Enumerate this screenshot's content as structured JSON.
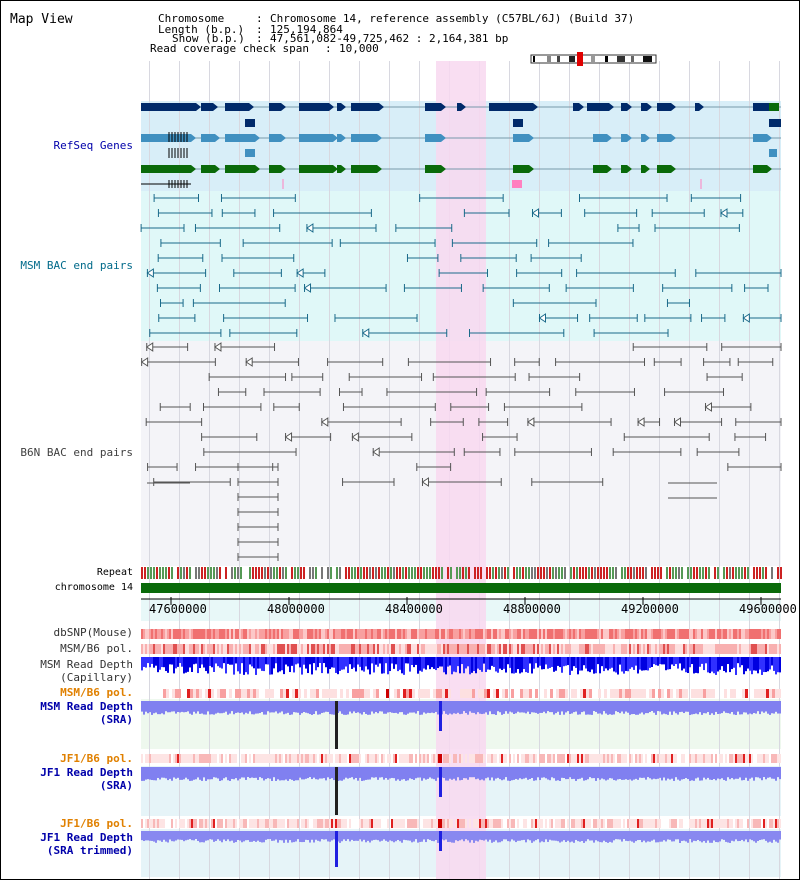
{
  "view_title": "Map View",
  "info": {
    "chromosome_key": "Chromosome",
    "chromosome_val": "Chromosome 14, reference assembly (C57BL/6J) (Build 37)",
    "length_key": "Length (b.p.)",
    "length_val": "125,194,864",
    "show_key": "Show (b.p.)",
    "show_val": "47,561,082-49,725,462 : 2,164,381 bp",
    "coverage_key": "Read coverage check span",
    "coverage_val": "10,000"
  },
  "tracks": {
    "refseq": "RefSeq Genes",
    "msm_bac": "MSM BAC end pairs",
    "b6n_bac": "B6N BAC end pairs",
    "repeat": "Repeat",
    "chromosome": "chromosome 14",
    "dbsnp": "dbSNP(Mouse)",
    "msm_b6_pol_1": "MSM/B6 pol.",
    "msm_read_depth_cap_1": "MSM Read Depth",
    "msm_read_depth_cap_2": "(Capillary)",
    "msm_b6_pol_2": "MSM/B6 pol.",
    "msm_read_depth_sra_1": "MSM Read Depth",
    "msm_read_depth_sra_2": "(SRA)",
    "jf1_b6_pol_1": "JF1/B6 pol.",
    "jf1_read_depth_sra_1": "JF1 Read Depth",
    "jf1_read_depth_sra_2": "(SRA)",
    "jf1_b6_pol_2": "JF1/B6 pol.",
    "jf1_read_depth_trim_1": "JF1 Read Depth",
    "jf1_read_depth_trim_2": "(SRA trimmed)"
  },
  "axis_ticks": [
    "47600000",
    "48000000",
    "48400000",
    "48800000",
    "49200000",
    "49600000"
  ],
  "colors": {
    "highlight": "#f8d8f0",
    "refseq_bg": "#d8eef8",
    "msm_bac_bg": "#e0f8f8",
    "b6n_bac_bg": "#f4f4f8",
    "gene_dark": "#002a6a",
    "gene_mid": "#4090c0",
    "gene_green": "#0a6a0a",
    "label_blue": "#0000aa",
    "label_orange": "#e08000",
    "label_teal": "#006a8a",
    "label_gray": "#404040"
  }
}
